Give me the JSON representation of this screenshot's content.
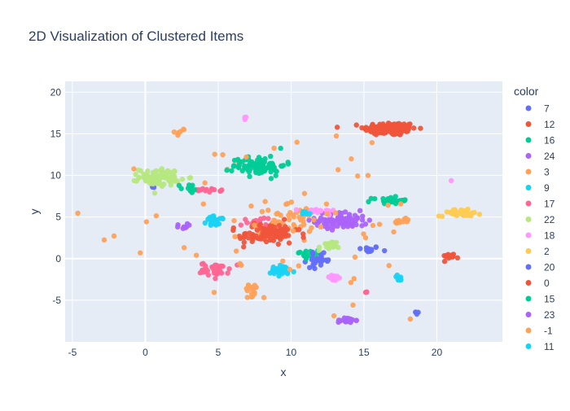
{
  "chart_data": {
    "type": "scatter",
    "title": "2D Visualization of Clustered Items",
    "xlabel": "x",
    "ylabel": "y",
    "xlim": [
      -5.5,
      24.5
    ],
    "ylim": [
      -10,
      21.3
    ],
    "x_ticks": [
      -5,
      0,
      5,
      10,
      15,
      20
    ],
    "y_ticks": [
      -5,
      0,
      5,
      10,
      15,
      20
    ],
    "grid": true,
    "legend_title": "color",
    "legend_position": "right",
    "series": [
      {
        "name": "7",
        "color": "#636efa",
        "clusters": [
          {
            "cx": 15.3,
            "cy": 1.1,
            "sx": 0.4,
            "sy": 0.2,
            "n": 14
          },
          {
            "cx": 18.6,
            "cy": -6.5,
            "sx": 0.1,
            "sy": 0.1,
            "n": 4
          },
          {
            "cx": 0.5,
            "cy": 8.6,
            "sx": 0.1,
            "sy": 0.1,
            "n": 2
          }
        ]
      },
      {
        "name": "12",
        "color": "#ef553b",
        "clusters": [
          {
            "cx": 16.8,
            "cy": 15.6,
            "sx": 0.9,
            "sy": 0.4,
            "n": 150
          },
          {
            "cx": 21.0,
            "cy": 0.3,
            "sx": 0.3,
            "sy": 0.15,
            "n": 16
          },
          {
            "cx": 8.0,
            "cy": 2.8,
            "sx": 0.8,
            "sy": 0.6,
            "n": 40
          }
        ]
      },
      {
        "name": "16",
        "color": "#00cc96",
        "clusters": [
          {
            "cx": 16.8,
            "cy": 7.0,
            "sx": 0.6,
            "sy": 0.2,
            "n": 24
          },
          {
            "cx": 11.3,
            "cy": 0.6,
            "sx": 0.3,
            "sy": 0.3,
            "n": 6
          }
        ]
      },
      {
        "name": "24",
        "color": "#ab63fa",
        "clusters": [
          {
            "cx": 13.5,
            "cy": 4.6,
            "sx": 0.9,
            "sy": 0.5,
            "n": 90
          },
          {
            "cx": 2.3,
            "cy": 3.9,
            "sx": 0.3,
            "sy": 0.15,
            "n": 8
          }
        ]
      },
      {
        "name": "3",
        "color": "#ffa15a",
        "clusters": [
          {
            "cx": 9.8,
            "cy": 4.5,
            "sx": 1.2,
            "sy": 0.8,
            "n": 40
          },
          {
            "cx": 7.3,
            "cy": -4.0,
            "sx": 0.3,
            "sy": 0.6,
            "n": 16
          },
          {
            "cx": 17.4,
            "cy": 4.5,
            "sx": 0.4,
            "sy": 0.2,
            "n": 10
          },
          {
            "cx": 2.4,
            "cy": 15.3,
            "sx": 0.2,
            "sy": 0.2,
            "n": 6
          },
          {
            "cx": 8.0,
            "cy": 6.0,
            "sx": 3.5,
            "sy": 4.0,
            "n": 18
          }
        ]
      },
      {
        "name": "9",
        "color": "#19d3f3",
        "clusters": [
          {
            "cx": 4.8,
            "cy": 4.5,
            "sx": 0.3,
            "sy": 0.3,
            "n": 30
          },
          {
            "cx": 9.3,
            "cy": -1.5,
            "sx": 0.5,
            "sy": 0.35,
            "n": 30
          }
        ]
      },
      {
        "name": "17",
        "color": "#ff6692",
        "clusters": [
          {
            "cx": 4.8,
            "cy": -1.3,
            "sx": 0.5,
            "sy": 0.4,
            "n": 40
          },
          {
            "cx": 4.2,
            "cy": 8.2,
            "sx": 0.5,
            "sy": 0.1,
            "n": 14
          },
          {
            "cx": 7.6,
            "cy": 4.6,
            "sx": 0.5,
            "sy": 0.3,
            "n": 12
          },
          {
            "cx": 15.1,
            "cy": -4.0,
            "sx": 0.1,
            "sy": 0.1,
            "n": 3
          }
        ]
      },
      {
        "name": "22",
        "color": "#b6e880",
        "clusters": [
          {
            "cx": 1.0,
            "cy": 9.8,
            "sx": 0.7,
            "sy": 0.5,
            "n": 90
          },
          {
            "cx": 12.5,
            "cy": 1.3,
            "sx": 0.3,
            "sy": 0.4,
            "n": 14
          }
        ]
      },
      {
        "name": "18",
        "color": "#ff97ff",
        "clusters": [
          {
            "cx": 11.8,
            "cy": 5.7,
            "sx": 0.6,
            "sy": 0.15,
            "n": 20
          },
          {
            "cx": 12.9,
            "cy": -2.3,
            "sx": 0.3,
            "sy": 0.2,
            "n": 16
          },
          {
            "cx": 6.8,
            "cy": 16.9,
            "sx": 0.1,
            "sy": 0.2,
            "n": 3
          },
          {
            "cx": 21.0,
            "cy": 9.4,
            "sx": 0.05,
            "sy": 0.05,
            "n": 1
          }
        ]
      },
      {
        "name": "2",
        "color": "#fecb52",
        "clusters": [
          {
            "cx": 21.6,
            "cy": 5.5,
            "sx": 0.7,
            "sy": 0.2,
            "n": 40
          }
        ]
      },
      {
        "name": "20",
        "color": "#636efa",
        "clusters": [
          {
            "cx": 11.9,
            "cy": -0.2,
            "sx": 0.4,
            "sy": 0.4,
            "n": 26
          }
        ]
      },
      {
        "name": "0",
        "color": "#ef553b",
        "clusters": [
          {
            "cx": 8.6,
            "cy": 3.0,
            "sx": 1.0,
            "sy": 0.7,
            "n": 60
          }
        ]
      },
      {
        "name": "15",
        "color": "#00cc96",
        "clusters": [
          {
            "cx": 7.8,
            "cy": 11.2,
            "sx": 0.9,
            "sy": 0.6,
            "n": 80
          },
          {
            "cx": 3.0,
            "cy": 8.4,
            "sx": 0.3,
            "sy": 0.3,
            "n": 12
          },
          {
            "cx": 11.0,
            "cy": 0.5,
            "sx": 0.3,
            "sy": 0.3,
            "n": 8
          }
        ]
      },
      {
        "name": "23",
        "color": "#ab63fa",
        "clusters": [
          {
            "cx": 13.8,
            "cy": -7.4,
            "sx": 0.3,
            "sy": 0.15,
            "n": 24
          }
        ]
      },
      {
        "name": "-1",
        "color": "#ffa15a",
        "clusters": [
          {
            "cx": 11.0,
            "cy": 4.0,
            "sx": 5.0,
            "sy": 6.0,
            "n": 45
          }
        ]
      },
      {
        "name": "11",
        "color": "#19d3f3",
        "clusters": [
          {
            "cx": 17.4,
            "cy": -2.4,
            "sx": 0.1,
            "sy": 0.2,
            "n": 8
          },
          {
            "cx": 10.9,
            "cy": 5.5,
            "sx": 0.3,
            "sy": 0.2,
            "n": 6
          }
        ]
      }
    ]
  }
}
